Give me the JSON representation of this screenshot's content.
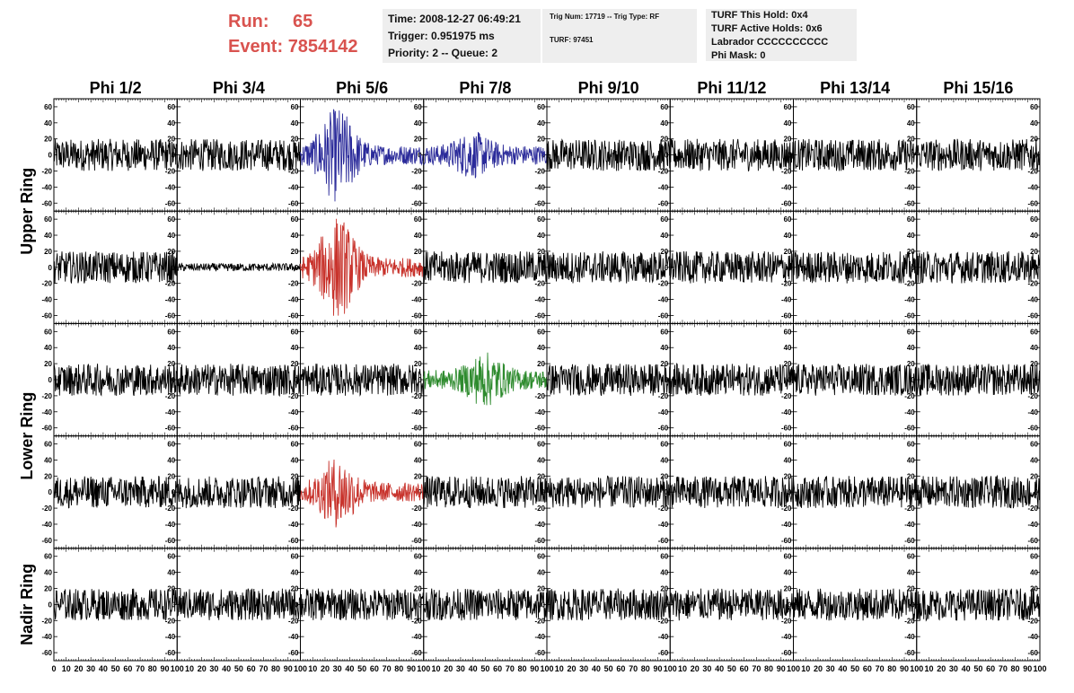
{
  "run_info": {
    "run_label": "Run:",
    "run_value": "65",
    "event_label": "Event:",
    "event_value": "7854142"
  },
  "time_box": {
    "time": "Time: 2008-12-27 06:49:21",
    "trigger": "Trigger: 0.951975 ms",
    "priority": "Priority: 2 -- Queue: 2"
  },
  "trig_box": {
    "line1": "Trig Num: 17719 -- Trig Type: RF",
    "line2": "TURF: 97451"
  },
  "turf_box": {
    "hold": "TURF This Hold: 0x4",
    "active": "TURF Active Holds: 0x6",
    "labrador": "Labrador CCCCCCCCCC",
    "phimask": "Phi Mask: 0"
  },
  "chart_data": {
    "type": "line",
    "columns": [
      "Phi 1/2",
      "Phi 3/4",
      "Phi 5/6",
      "Phi 7/8",
      "Phi 9/10",
      "Phi 11/12",
      "Phi 13/14",
      "Phi 15/16"
    ],
    "row_groups": [
      {
        "label": "Upper Ring",
        "rows": [
          0,
          1
        ]
      },
      {
        "label": "Lower Ring",
        "rows": [
          2,
          3
        ]
      },
      {
        "label": "Nadir Ring",
        "rows": [
          4
        ]
      }
    ],
    "ylim": [
      -70,
      70
    ],
    "yticks": [
      -60,
      -40,
      -20,
      0,
      20,
      40,
      60
    ],
    "xlim": [
      0,
      100
    ],
    "xticks": [
      0,
      10,
      20,
      30,
      40,
      50,
      60,
      70,
      80,
      90,
      100
    ],
    "xtick_labels": [
      "0",
      "10",
      "20",
      "30",
      "40",
      "50",
      "60",
      "70",
      "80",
      "90",
      "100"
    ],
    "trace_colors": {
      "default": "#000000",
      "blue": "#2b2b9a",
      "red": "#c8332c",
      "green": "#2e8b2e"
    },
    "highlighted": [
      {
        "row": 0,
        "col": 2,
        "color": "blue",
        "amplitude": 60,
        "pulse_center": 30
      },
      {
        "row": 0,
        "col": 3,
        "color": "blue",
        "amplitude": 30,
        "pulse_center": 40
      },
      {
        "row": 1,
        "col": 2,
        "color": "red",
        "amplitude": 65,
        "pulse_center": 30
      },
      {
        "row": 1,
        "col": 1,
        "color": "default",
        "amplitude": 5,
        "pulse_center": 0
      },
      {
        "row": 2,
        "col": 3,
        "color": "green",
        "amplitude": 35,
        "pulse_center": 50
      },
      {
        "row": 3,
        "col": 2,
        "color": "red",
        "amplitude": 45,
        "pulse_center": 30
      }
    ],
    "noise_amplitude": 20
  }
}
